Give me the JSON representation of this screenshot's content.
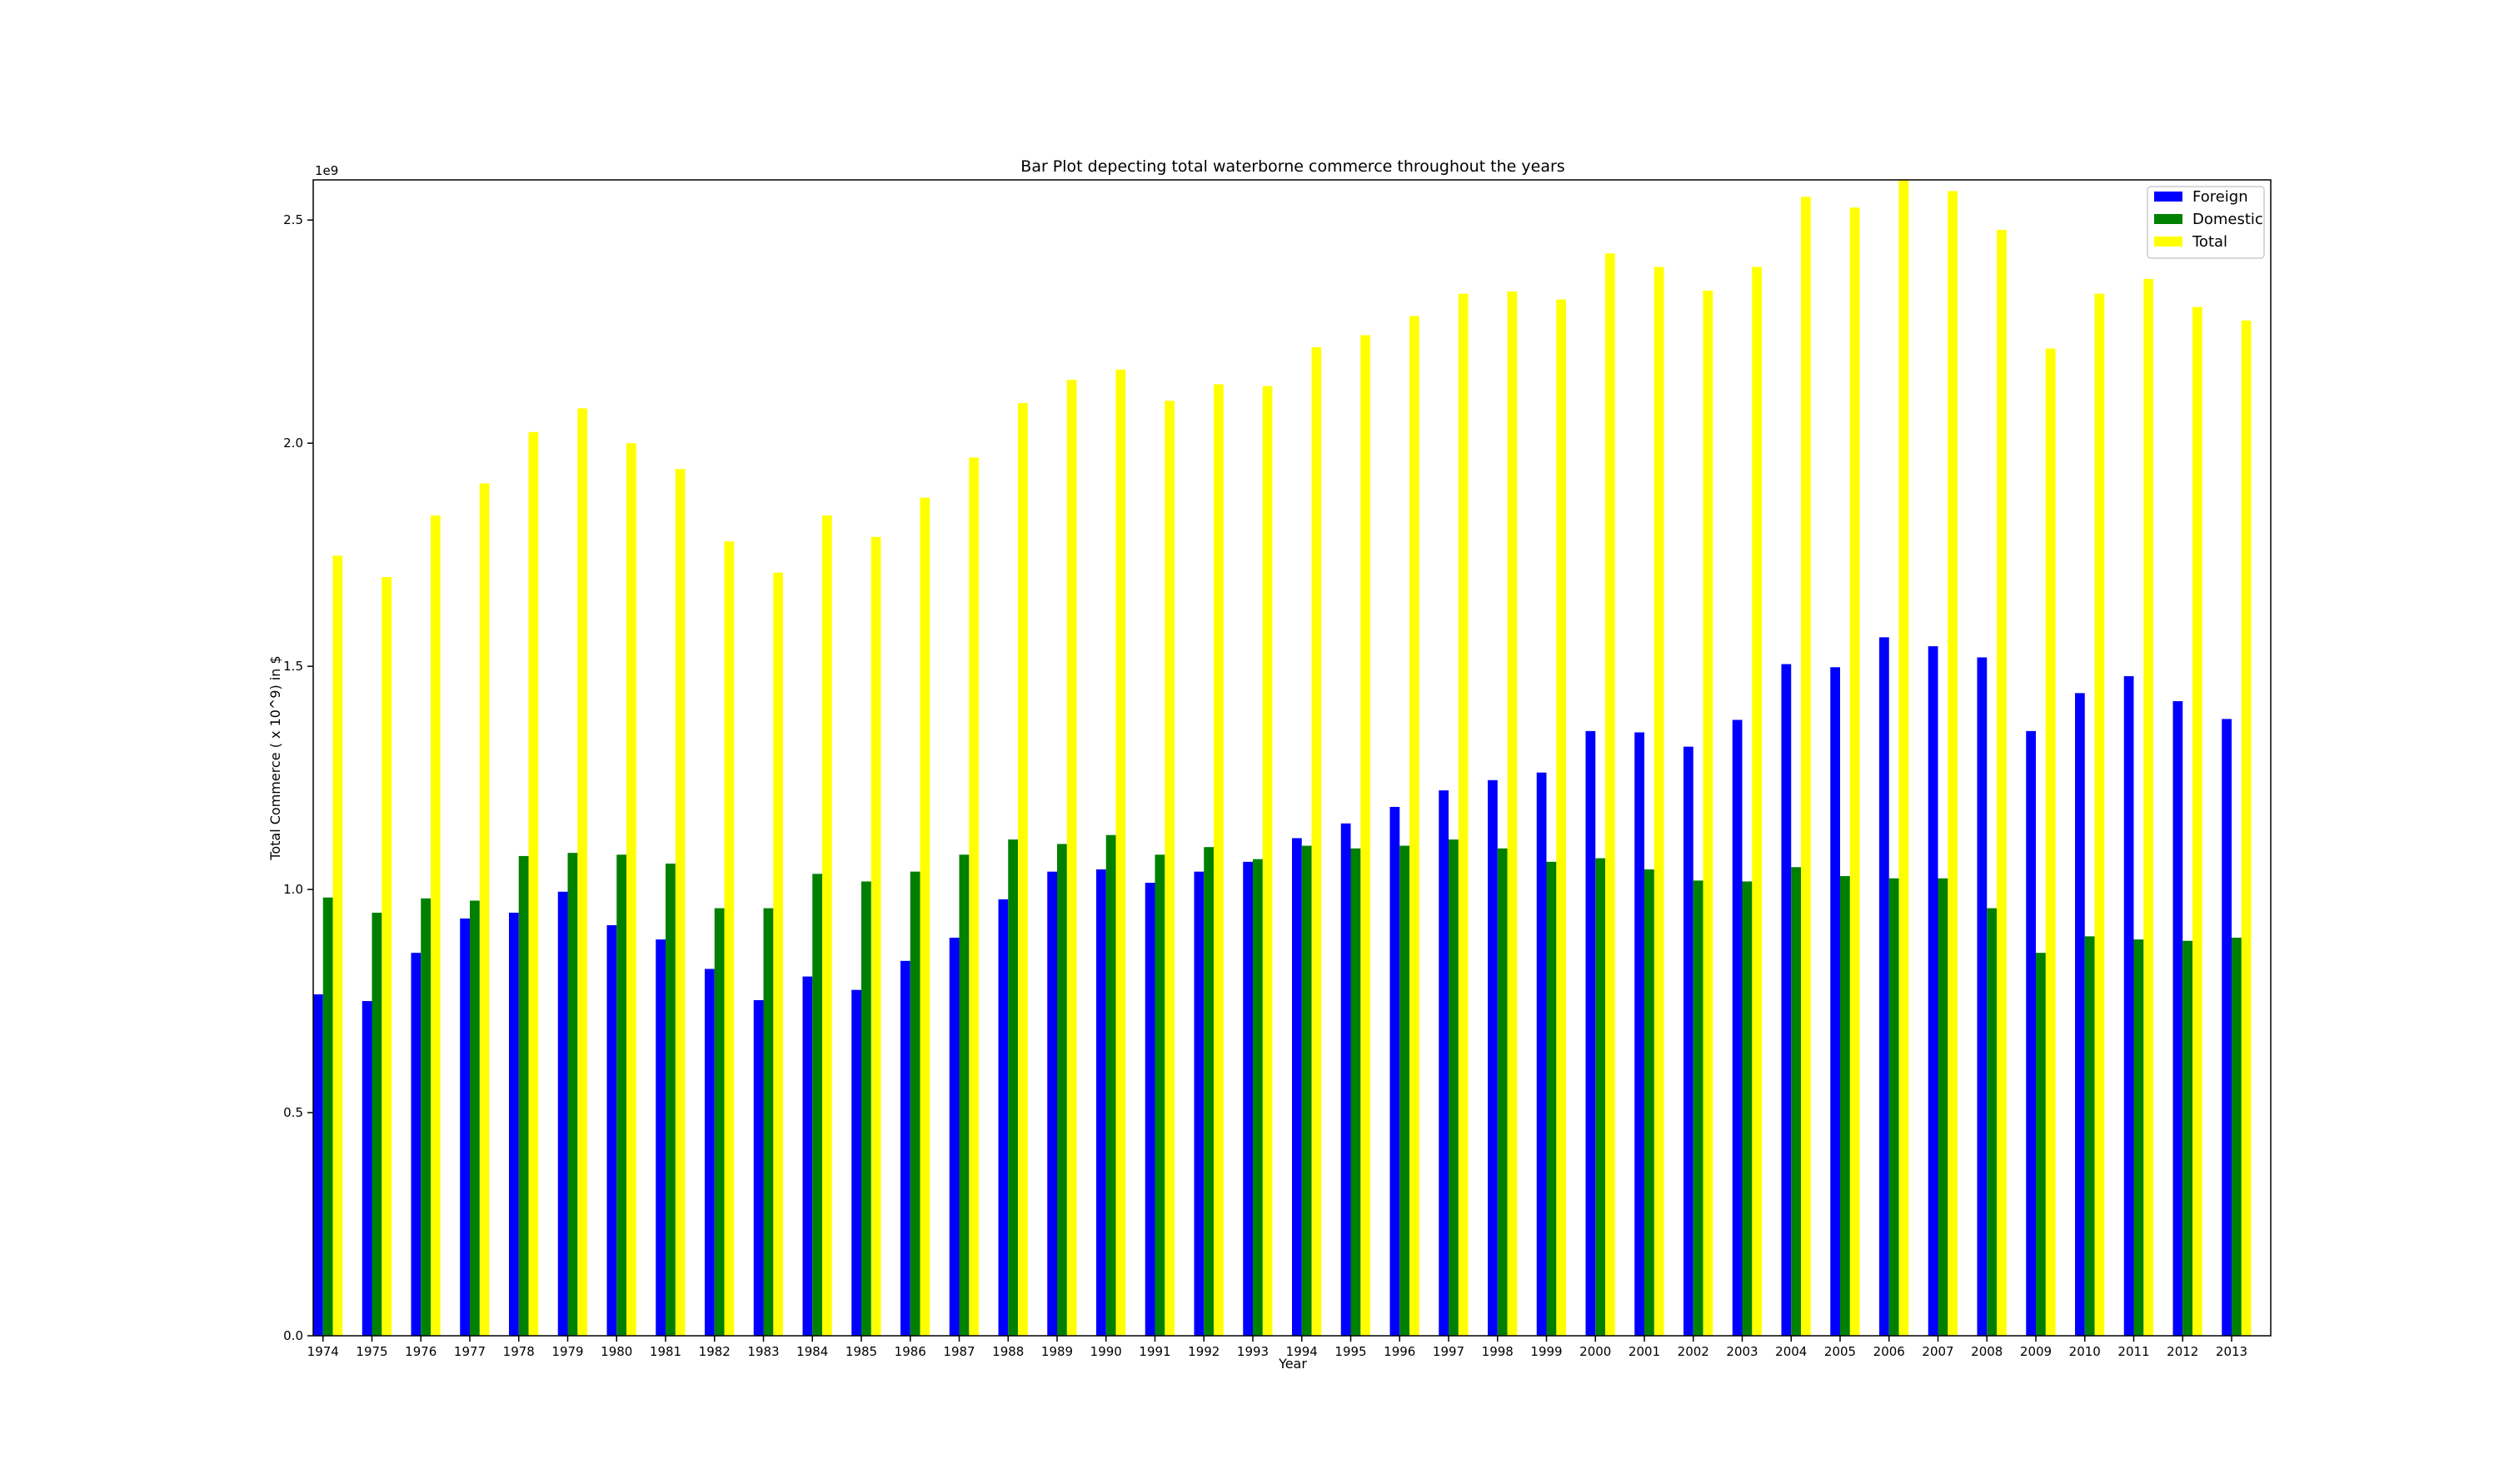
{
  "chart_data": {
    "type": "bar",
    "title": "Bar Plot depecting total waterborne commerce throughout the years",
    "xlabel": "Year",
    "ylabel": "Total Commerce ( x 10^9) in $",
    "y_offset_label": "1e9",
    "ylim": [
      0,
      2.59
    ],
    "yticks": [
      "0.0",
      "0.5",
      "1.0",
      "1.5",
      "2.0",
      "2.5"
    ],
    "ytick_values": [
      0,
      0.5,
      1.0,
      1.5,
      2.0,
      2.5
    ],
    "legend_position": "top-right",
    "grid": false,
    "categories": [
      "1974",
      "1975",
      "1976",
      "1977",
      "1978",
      "1979",
      "1980",
      "1981",
      "1982",
      "1983",
      "1984",
      "1985",
      "1986",
      "1987",
      "1988",
      "1989",
      "1990",
      "1991",
      "1992",
      "1993",
      "1994",
      "1995",
      "1996",
      "1997",
      "1998",
      "1999",
      "2000",
      "2001",
      "2002",
      "2003",
      "2004",
      "2005",
      "2006",
      "2007",
      "2008",
      "2009",
      "2010",
      "2011",
      "2012",
      "2013"
    ],
    "series": [
      {
        "name": "Foreign",
        "color": "#0000ff",
        "values": [
          0.765,
          0.75,
          0.858,
          0.935,
          0.948,
          0.995,
          0.92,
          0.888,
          0.822,
          0.752,
          0.805,
          0.775,
          0.84,
          0.892,
          0.978,
          1.04,
          1.045,
          1.015,
          1.04,
          1.062,
          1.115,
          1.148,
          1.185,
          1.222,
          1.245,
          1.262,
          1.355,
          1.352,
          1.32,
          1.38,
          1.505,
          1.498,
          1.565,
          1.545,
          1.52,
          1.355,
          1.44,
          1.478,
          1.422,
          1.382
        ]
      },
      {
        "name": "Domestic",
        "color": "#008000",
        "values": [
          0.982,
          0.948,
          0.98,
          0.975,
          1.075,
          1.082,
          1.078,
          1.058,
          0.958,
          0.958,
          1.035,
          1.018,
          1.04,
          1.078,
          1.112,
          1.102,
          1.122,
          1.078,
          1.095,
          1.068,
          1.098,
          1.092,
          1.098,
          1.112,
          1.092,
          1.062,
          1.07,
          1.045,
          1.02,
          1.018,
          1.05,
          1.03,
          1.025,
          1.025,
          0.958,
          0.858,
          0.895,
          0.888,
          0.885,
          0.892
        ]
      },
      {
        "name": "Total",
        "color": "#ffff00",
        "values": [
          1.748,
          1.7,
          1.838,
          1.91,
          2.025,
          2.078,
          2.0,
          1.942,
          1.78,
          1.71,
          1.838,
          1.79,
          1.878,
          1.968,
          2.09,
          2.142,
          2.165,
          2.095,
          2.132,
          2.128,
          2.215,
          2.242,
          2.285,
          2.335,
          2.34,
          2.322,
          2.425,
          2.395,
          2.342,
          2.395,
          2.552,
          2.528,
          2.59,
          2.565,
          2.478,
          2.212,
          2.335,
          2.368,
          2.305,
          2.275
        ]
      }
    ]
  }
}
